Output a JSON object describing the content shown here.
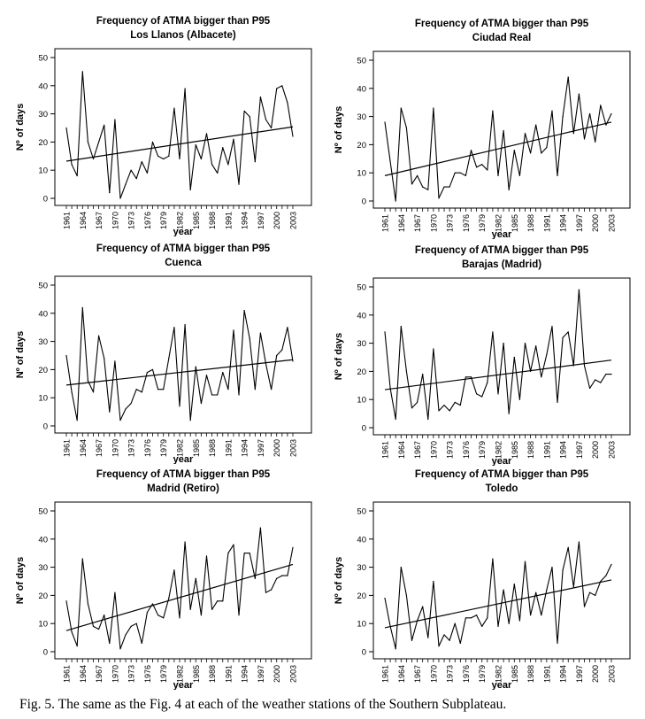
{
  "figure": {
    "caption": "Fig. 5. The same as the Fig. 4 at each of the weather stations of the Southern Subplateau."
  },
  "chart_data": [
    {
      "type": "line",
      "title": "Frequency of ATMA bigger than P95",
      "subtitle": "Los Llanos (Albacete)",
      "xlabel": "year",
      "ylabel": "Nº of days",
      "ylim": [
        0,
        50
      ],
      "yticks": [
        0,
        10,
        20,
        30,
        40,
        50
      ],
      "xlim": [
        1961,
        2003
      ],
      "xtick_labels": [
        "1961",
        "1964",
        "1967",
        "1970",
        "1973",
        "1976",
        "1979",
        "1982",
        "1985",
        "1988",
        "1991",
        "1994",
        "1997",
        "2000",
        "2003"
      ],
      "x": [
        1961,
        1962,
        1963,
        1964,
        1965,
        1966,
        1967,
        1968,
        1969,
        1970,
        1971,
        1972,
        1973,
        1974,
        1975,
        1976,
        1977,
        1978,
        1979,
        1980,
        1981,
        1982,
        1983,
        1984,
        1985,
        1986,
        1987,
        1988,
        1989,
        1990,
        1991,
        1992,
        1993,
        1994,
        1995,
        1996,
        1997,
        1998,
        1999,
        2000,
        2001,
        2002,
        2003
      ],
      "series": [
        {
          "name": "frequency",
          "values": [
            25,
            12,
            8,
            45,
            20,
            14,
            20,
            26,
            2,
            28,
            0,
            5,
            10,
            7,
            13,
            9,
            20,
            15,
            14,
            15,
            32,
            14,
            39,
            3,
            19,
            14,
            23,
            12,
            9,
            18,
            12,
            21,
            5,
            31,
            29,
            13,
            36,
            28,
            25,
            39,
            40,
            34,
            22
          ]
        }
      ],
      "trend": [
        13.2,
        25.4
      ]
    },
    {
      "type": "line",
      "title": "Frequency of ATMA bigger than P95",
      "subtitle": "Ciudad Real",
      "xlabel": "year",
      "ylabel": "Nº of days",
      "ylim": [
        0,
        50
      ],
      "yticks": [
        0,
        10,
        20,
        30,
        40,
        50
      ],
      "xlim": [
        1961,
        2003
      ],
      "xtick_labels": [
        "1961",
        "1964",
        "1967",
        "1970",
        "1973",
        "1976",
        "1979",
        "1982",
        "1985",
        "1988",
        "1991",
        "1994",
        "1997",
        "2000",
        "2003"
      ],
      "x": [
        1961,
        1962,
        1963,
        1964,
        1965,
        1966,
        1967,
        1968,
        1969,
        1970,
        1971,
        1972,
        1973,
        1974,
        1975,
        1976,
        1977,
        1978,
        1979,
        1980,
        1981,
        1982,
        1983,
        1984,
        1985,
        1986,
        1987,
        1988,
        1989,
        1990,
        1991,
        1992,
        1993,
        1994,
        1995,
        1996,
        1997,
        1998,
        1999,
        2000,
        2001,
        2002,
        2003
      ],
      "series": [
        {
          "name": "frequency",
          "values": [
            28,
            14,
            0,
            33,
            26,
            6,
            9,
            5,
            4,
            33,
            1,
            5,
            5,
            10,
            10,
            9,
            18,
            12,
            13,
            11,
            32,
            9,
            25,
            4,
            18,
            9,
            24,
            17,
            27,
            17,
            19,
            32,
            9,
            30,
            44,
            24,
            38,
            22,
            31,
            21,
            34,
            27,
            31
          ]
        }
      ],
      "trend": [
        9.0,
        28.0
      ]
    },
    {
      "type": "line",
      "title": "Frequency of ATMA bigger than P95",
      "subtitle": "Cuenca",
      "xlabel": "year",
      "ylabel": "Nº of days",
      "ylim": [
        0,
        50
      ],
      "yticks": [
        0,
        10,
        20,
        30,
        40,
        50
      ],
      "xlim": [
        1961,
        2003
      ],
      "xtick_labels": [
        "1961",
        "1964",
        "1967",
        "1970",
        "1973",
        "1976",
        "1979",
        "1982",
        "1985",
        "1988",
        "1991",
        "1994",
        "1997",
        "2000",
        "2003"
      ],
      "x": [
        1961,
        1962,
        1963,
        1964,
        1965,
        1966,
        1967,
        1968,
        1969,
        1970,
        1971,
        1972,
        1973,
        1974,
        1975,
        1976,
        1977,
        1978,
        1979,
        1980,
        1981,
        1982,
        1983,
        1984,
        1985,
        1986,
        1987,
        1988,
        1989,
        1990,
        1991,
        1992,
        1993,
        1994,
        1995,
        1996,
        1997,
        1998,
        1999,
        2000,
        2001,
        2002,
        2003
      ],
      "series": [
        {
          "name": "frequency",
          "values": [
            25,
            12,
            2,
            42,
            16,
            12,
            32,
            24,
            5,
            23,
            2,
            6,
            8,
            13,
            12,
            19,
            20,
            13,
            13,
            24,
            35,
            7,
            36,
            2,
            21,
            8,
            18,
            11,
            11,
            19,
            13,
            34,
            11,
            41,
            31,
            13,
            33,
            22,
            13,
            25,
            27,
            35,
            23
          ]
        }
      ],
      "trend": [
        14.5,
        23.5
      ]
    },
    {
      "type": "line",
      "title": "Frequency of ATMA bigger than P95",
      "subtitle": "Barajas (Madrid)",
      "xlabel": "year",
      "ylabel": "Nº of days",
      "ylim": [
        0,
        50
      ],
      "yticks": [
        0,
        10,
        20,
        30,
        40,
        50
      ],
      "xlim": [
        1961,
        2003
      ],
      "xtick_labels": [
        "1961",
        "1964",
        "1967",
        "1970",
        "1973",
        "1976",
        "1979",
        "1982",
        "1985",
        "1988",
        "1991",
        "1994",
        "1997",
        "2000",
        "2003"
      ],
      "x": [
        1961,
        1962,
        1963,
        1964,
        1965,
        1966,
        1967,
        1968,
        1969,
        1970,
        1971,
        1972,
        1973,
        1974,
        1975,
        1976,
        1977,
        1978,
        1979,
        1980,
        1981,
        1982,
        1983,
        1984,
        1985,
        1986,
        1987,
        1988,
        1989,
        1990,
        1991,
        1992,
        1993,
        1994,
        1995,
        1996,
        1997,
        1998,
        1999,
        2000,
        2001,
        2002,
        2003
      ],
      "series": [
        {
          "name": "frequency",
          "values": [
            34,
            14,
            3,
            36,
            20,
            7,
            9,
            19,
            3,
            28,
            6,
            8,
            6,
            9,
            8,
            18,
            18,
            12,
            11,
            16,
            34,
            12,
            30,
            5,
            25,
            10,
            30,
            20,
            29,
            18,
            26,
            36,
            9,
            32,
            34,
            22,
            49,
            22,
            14,
            17,
            16,
            19,
            19
          ]
        }
      ],
      "trend": [
        13.5,
        24.0
      ]
    },
    {
      "type": "line",
      "title": "Frequency of ATMA bigger than P95",
      "subtitle": "Madrid (Retiro)",
      "xlabel": "year",
      "ylabel": "Nº of days",
      "ylim": [
        0,
        50
      ],
      "yticks": [
        0,
        10,
        20,
        30,
        40,
        50
      ],
      "xlim": [
        1961,
        2003
      ],
      "xtick_labels": [
        "1961",
        "1964",
        "1967",
        "1970",
        "1973",
        "1976",
        "1979",
        "1982",
        "1985",
        "1988",
        "1991",
        "1994",
        "1997",
        "2000",
        "2003"
      ],
      "x": [
        1961,
        1962,
        1963,
        1964,
        1965,
        1966,
        1967,
        1968,
        1969,
        1970,
        1971,
        1972,
        1973,
        1974,
        1975,
        1976,
        1977,
        1978,
        1979,
        1980,
        1981,
        1982,
        1983,
        1984,
        1985,
        1986,
        1987,
        1988,
        1989,
        1990,
        1991,
        1992,
        1993,
        1994,
        1995,
        1996,
        1997,
        1998,
        1999,
        2000,
        2001,
        2002,
        2003
      ],
      "series": [
        {
          "name": "frequency",
          "values": [
            18,
            7,
            2,
            33,
            17,
            9,
            8,
            13,
            3,
            21,
            1,
            6,
            9,
            10,
            3,
            14,
            17,
            13,
            12,
            19,
            29,
            12,
            39,
            15,
            26,
            13,
            34,
            15,
            18,
            18,
            35,
            38,
            13,
            35,
            35,
            26,
            44,
            21,
            22,
            26,
            27,
            27,
            37
          ]
        }
      ],
      "trend": [
        7.5,
        31.0
      ]
    },
    {
      "type": "line",
      "title": "Frequency of ATMA bigger than P95",
      "subtitle": "Toledo",
      "xlabel": "year",
      "ylabel": "Nº of days",
      "ylim": [
        0,
        50
      ],
      "yticks": [
        0,
        10,
        20,
        30,
        40,
        50
      ],
      "xlim": [
        1961,
        2003
      ],
      "xtick_labels": [
        "1961",
        "1964",
        "1967",
        "1970",
        "1973",
        "1976",
        "1979",
        "1982",
        "1985",
        "1988",
        "1991",
        "1994",
        "1997",
        "2000",
        "2003"
      ],
      "x": [
        1961,
        1962,
        1963,
        1964,
        1965,
        1966,
        1967,
        1968,
        1969,
        1970,
        1971,
        1972,
        1973,
        1974,
        1975,
        1976,
        1977,
        1978,
        1979,
        1980,
        1981,
        1982,
        1983,
        1984,
        1985,
        1986,
        1987,
        1988,
        1989,
        1990,
        1991,
        1992,
        1993,
        1994,
        1995,
        1996,
        1997,
        1998,
        1999,
        2000,
        2001,
        2002,
        2003
      ],
      "series": [
        {
          "name": "frequency",
          "values": [
            19,
            9,
            1,
            30,
            20,
            4,
            11,
            16,
            5,
            25,
            2,
            6,
            4,
            10,
            3,
            12,
            12,
            13,
            9,
            12,
            33,
            9,
            22,
            10,
            24,
            11,
            32,
            13,
            21,
            13,
            22,
            30,
            3,
            29,
            37,
            23,
            39,
            16,
            21,
            20,
            25,
            27,
            31
          ]
        }
      ],
      "trend": [
        8.5,
        25.5
      ]
    }
  ]
}
